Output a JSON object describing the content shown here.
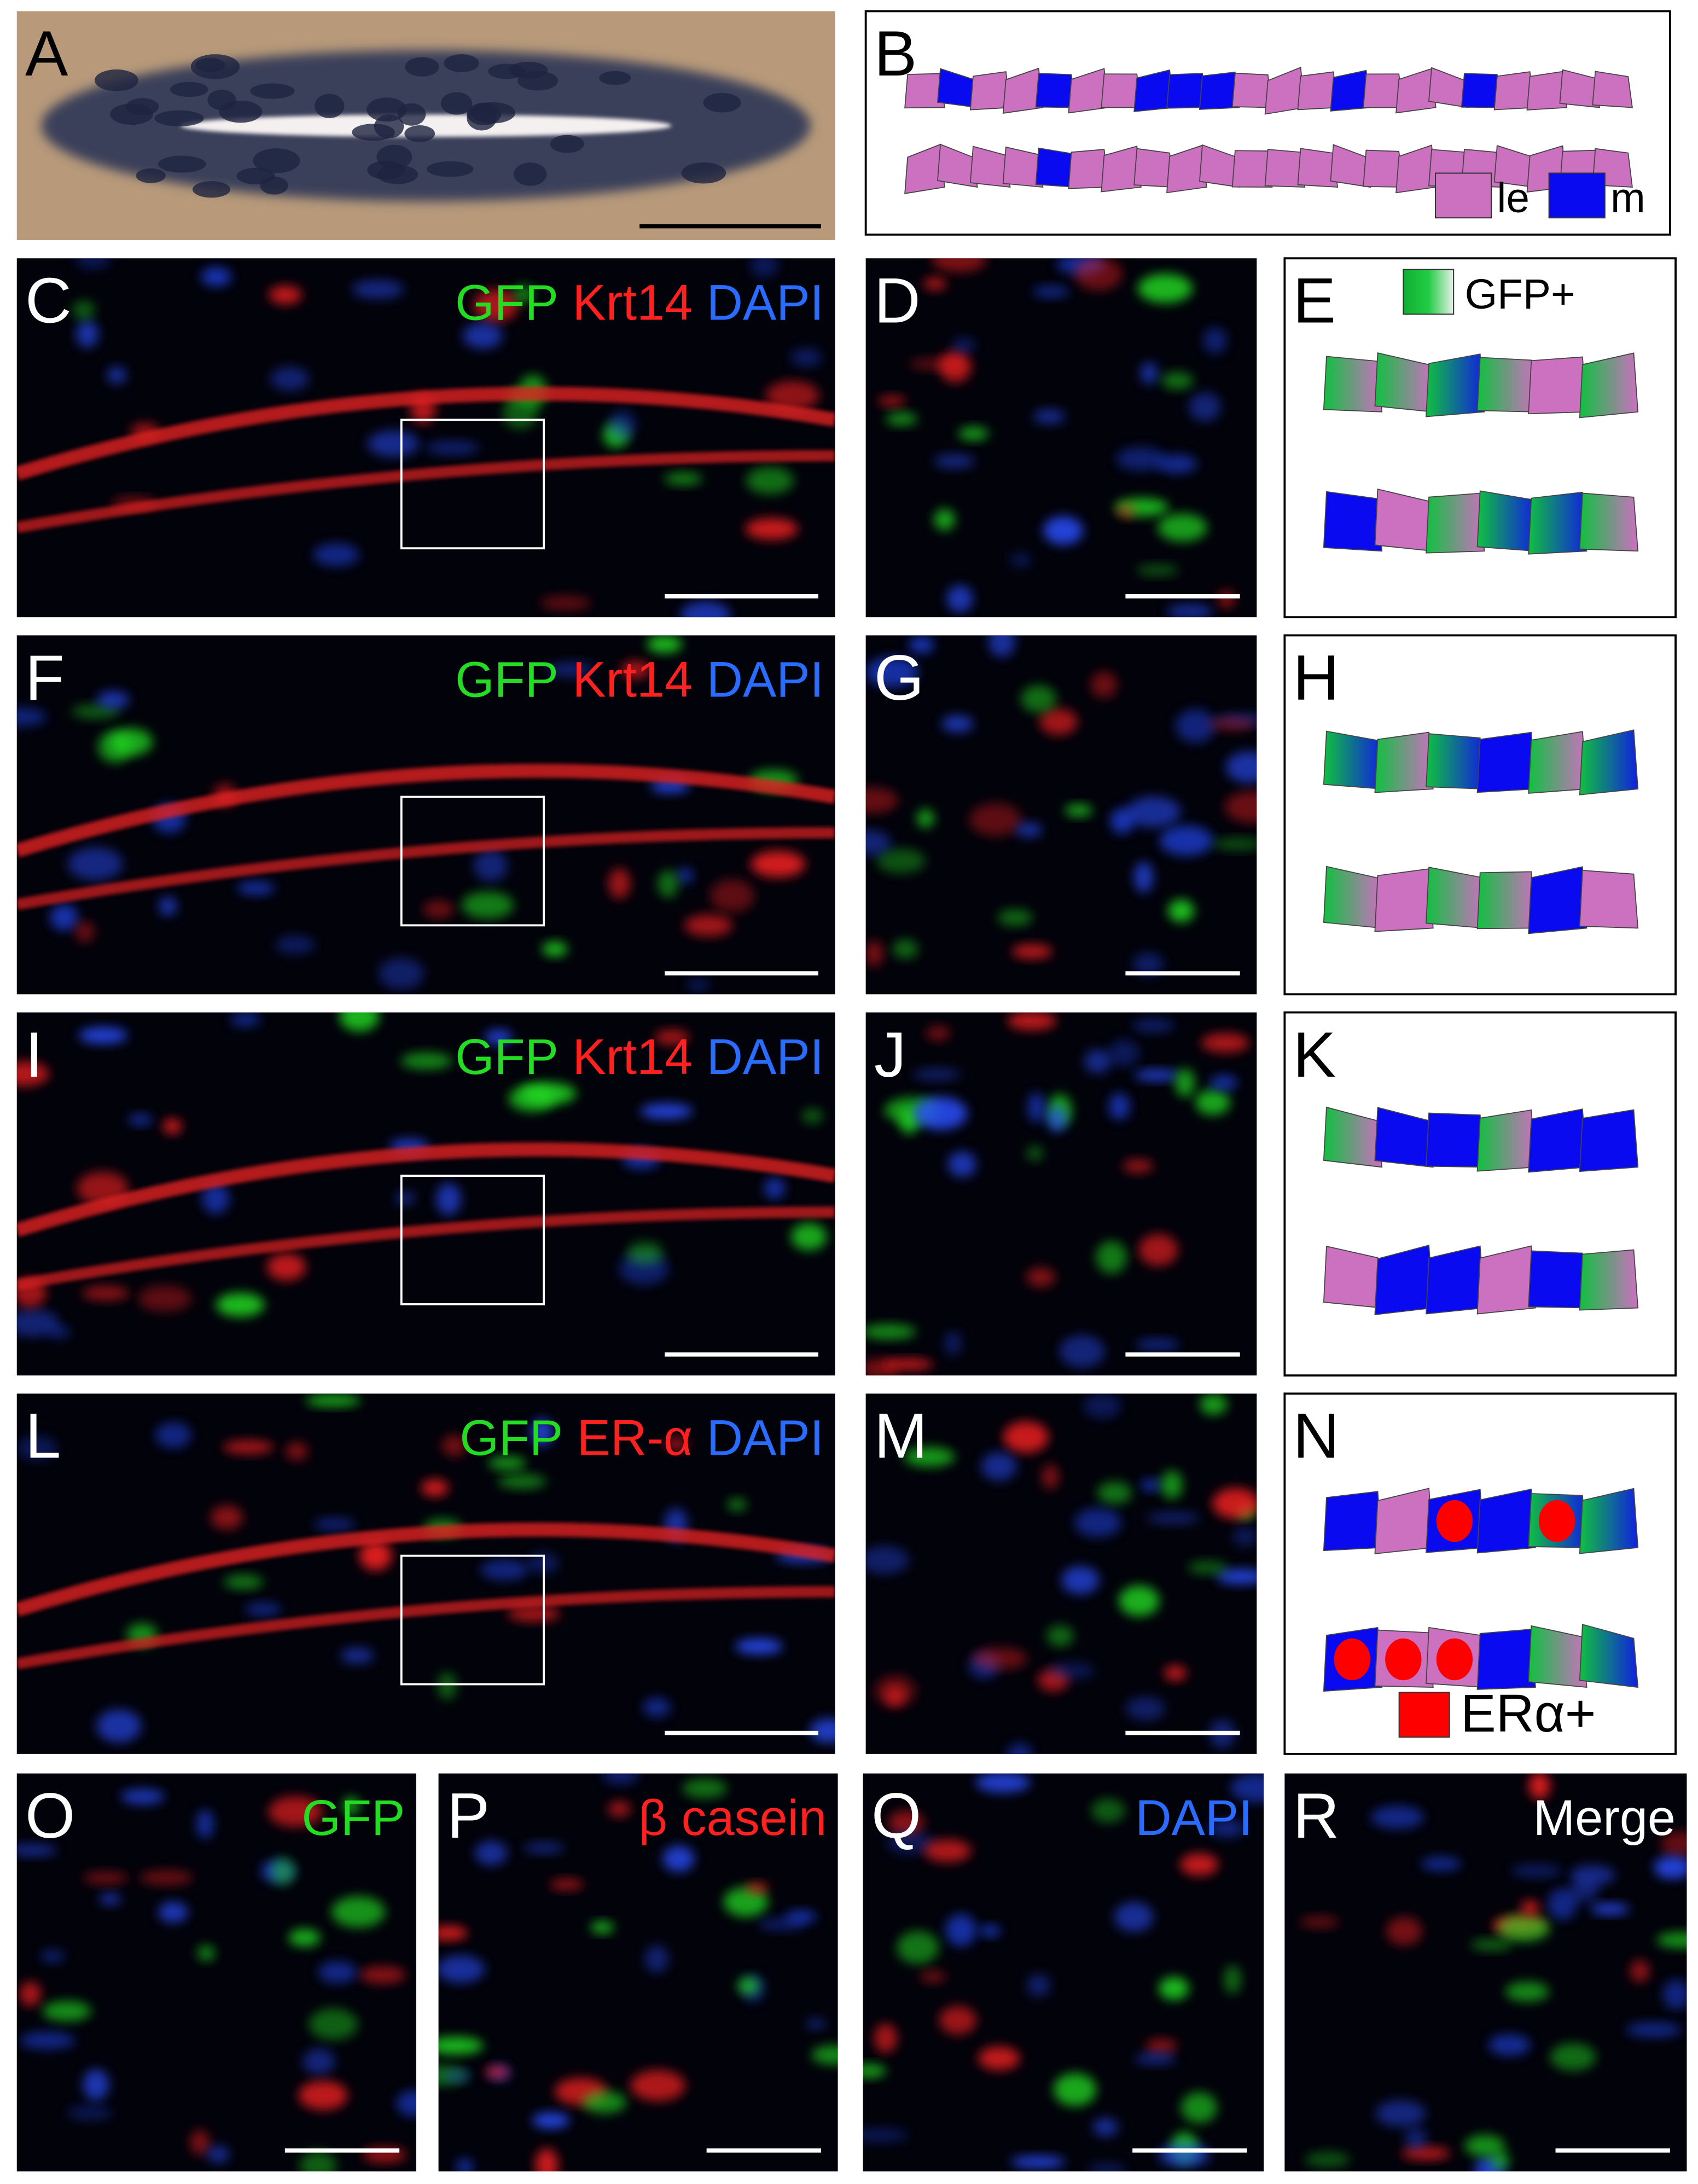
{
  "panels": [
    {
      "label": "A"
    },
    {
      "label": "B",
      "legend": [
        {
          "text": "le",
          "color": "#cc70c0"
        },
        {
          "text": "m",
          "color": "#0a0af0"
        }
      ]
    },
    {
      "label": "C",
      "stains": [
        {
          "text": "GFP",
          "color": "#22dd22"
        },
        {
          "text": "Krt14",
          "color": "#ff2020"
        },
        {
          "text": "DAPI",
          "color": "#2a6cff"
        }
      ]
    },
    {
      "label": "D"
    },
    {
      "label": "E",
      "legend": [
        {
          "text": "GFP+",
          "color": "gfp"
        }
      ]
    },
    {
      "label": "F",
      "stains": [
        {
          "text": "GFP",
          "color": "#22dd22"
        },
        {
          "text": "Krt14",
          "color": "#ff2020"
        },
        {
          "text": "DAPI",
          "color": "#2a6cff"
        }
      ]
    },
    {
      "label": "G"
    },
    {
      "label": "H"
    },
    {
      "label": "I",
      "stains": [
        {
          "text": "GFP",
          "color": "#22dd22"
        },
        {
          "text": "Krt14",
          "color": "#ff2020"
        },
        {
          "text": "DAPI",
          "color": "#2a6cff"
        }
      ]
    },
    {
      "label": "J"
    },
    {
      "label": "K"
    },
    {
      "label": "L",
      "stains": [
        {
          "text": "GFP",
          "color": "#22dd22"
        },
        {
          "text": "ER-α",
          "color": "#ff2020"
        },
        {
          "text": "DAPI",
          "color": "#2a6cff"
        }
      ]
    },
    {
      "label": "M"
    },
    {
      "label": "N",
      "legend": [
        {
          "text": "ERα+",
          "color": "#ff0000"
        }
      ]
    },
    {
      "label": "O",
      "stains": [
        {
          "text": "GFP",
          "color": "#22dd22"
        }
      ]
    },
    {
      "label": "P",
      "stains": [
        {
          "text": "β casein",
          "color": "#ff2020"
        }
      ]
    },
    {
      "label": "Q",
      "stains": [
        {
          "text": "DAPI",
          "color": "#2a6cff"
        }
      ]
    },
    {
      "label": "R",
      "stains": [
        {
          "text": "Merge",
          "color": "#ffffff"
        }
      ]
    }
  ]
}
